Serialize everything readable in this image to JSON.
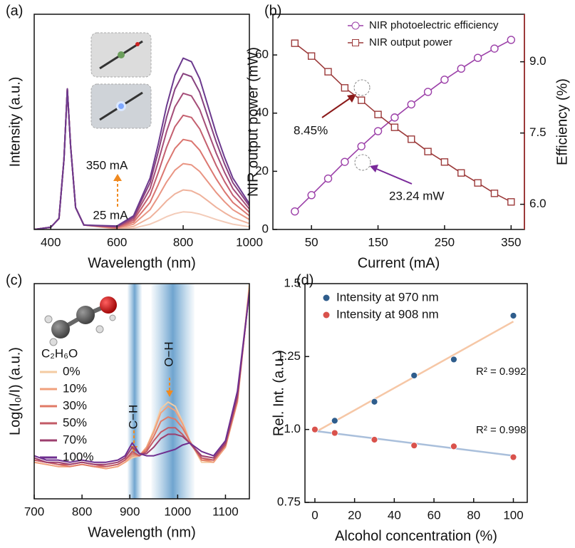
{
  "chart_data": [
    {
      "type": "line",
      "panel_label": "(a)",
      "xlabel": "Wavelength (nm)",
      "ylabel": "Intensity (a.u.)",
      "x": [
        350,
        400,
        425,
        440,
        450,
        460,
        475,
        500,
        550,
        600,
        650,
        700,
        725,
        750,
        775,
        800,
        825,
        850,
        875,
        900,
        925,
        950,
        1000
      ],
      "xlim": [
        350,
        1000
      ],
      "xticks": [
        400,
        600,
        800,
        1000
      ],
      "ylim": [
        0,
        0.98
      ],
      "series": [
        {
          "color": "#f3cbb8",
          "values": [
            0,
            0.01,
            0.05,
            0.32,
            0.64,
            0.38,
            0.1,
            0.02,
            0.011,
            0.002,
            0.006,
            0.024,
            0.04,
            0.058,
            0.072,
            0.08,
            0.078,
            0.07,
            0.058,
            0.045,
            0.034,
            0.024,
            0.012
          ]
        },
        {
          "color": "#efb29c",
          "values": [
            0,
            0.01,
            0.05,
            0.32,
            0.64,
            0.38,
            0.1,
            0.02,
            0.012,
            0.004,
            0.014,
            0.054,
            0.09,
            0.13,
            0.162,
            0.18,
            0.176,
            0.158,
            0.13,
            0.101,
            0.076,
            0.054,
            0.027
          ]
        },
        {
          "color": "#e99583",
          "values": [
            0,
            0.01,
            0.05,
            0.32,
            0.64,
            0.38,
            0.1,
            0.02,
            0.013,
            0.006,
            0.024,
            0.09,
            0.15,
            0.216,
            0.27,
            0.3,
            0.294,
            0.264,
            0.216,
            0.168,
            0.126,
            0.09,
            0.045
          ]
        },
        {
          "color": "#db7670",
          "values": [
            0,
            0.01,
            0.05,
            0.32,
            0.64,
            0.38,
            0.1,
            0.02,
            0.014,
            0.008,
            0.033,
            0.123,
            0.205,
            0.295,
            0.369,
            0.41,
            0.402,
            0.361,
            0.295,
            0.23,
            0.172,
            0.123,
            0.062
          ]
        },
        {
          "color": "#c45f6f",
          "values": [
            0,
            0.01,
            0.05,
            0.32,
            0.64,
            0.38,
            0.1,
            0.02,
            0.015,
            0.01,
            0.042,
            0.156,
            0.26,
            0.374,
            0.468,
            0.52,
            0.51,
            0.458,
            0.374,
            0.291,
            0.218,
            0.156,
            0.078
          ]
        },
        {
          "color": "#a54d78",
          "values": [
            0,
            0.01,
            0.05,
            0.32,
            0.64,
            0.38,
            0.1,
            0.02,
            0.016,
            0.012,
            0.05,
            0.186,
            0.31,
            0.446,
            0.558,
            0.62,
            0.608,
            0.546,
            0.446,
            0.347,
            0.26,
            0.186,
            0.093
          ]
        },
        {
          "color": "#87427f",
          "values": [
            0,
            0.01,
            0.05,
            0.32,
            0.64,
            0.38,
            0.1,
            0.02,
            0.017,
            0.014,
            0.057,
            0.213,
            0.355,
            0.511,
            0.639,
            0.71,
            0.696,
            0.625,
            0.511,
            0.398,
            0.298,
            0.213,
            0.107
          ]
        },
        {
          "color": "#6c3a8e",
          "values": [
            0,
            0.01,
            0.05,
            0.32,
            0.64,
            0.38,
            0.1,
            0.02,
            0.018,
            0.016,
            0.062,
            0.234,
            0.39,
            0.562,
            0.702,
            0.78,
            0.764,
            0.686,
            0.562,
            0.437,
            0.328,
            0.234,
            0.117
          ]
        }
      ],
      "annotations": [
        {
          "text": "350 mA"
        },
        {
          "text": "25 mA"
        }
      ]
    },
    {
      "type": "line",
      "markers": true,
      "panel_label": "(b)",
      "xlabel": "Current (mA)",
      "ylabel": "NIR output power (mW)",
      "y2label": "Efficiency (%)",
      "x": [
        25,
        50,
        75,
        100,
        125,
        150,
        175,
        200,
        225,
        250,
        275,
        300,
        325,
        350
      ],
      "xlim": [
        -8,
        370
      ],
      "xticks": [
        50,
        150,
        250,
        350
      ],
      "ylim": [
        0,
        74
      ],
      "yticks": [
        0,
        20,
        40,
        60
      ],
      "y2lim": [
        5.47,
        10.0
      ],
      "y2ticks": [
        {
          "value": 6,
          "label": "6.0"
        },
        7.5,
        {
          "value": 9,
          "label": "9.0"
        }
      ],
      "series": [
        {
          "name": "NIR photoelectric efficiency",
          "color": "#9b3fa8",
          "marker": "circle",
          "values": [
            6.2,
            11.8,
            17.5,
            23.24,
            28.6,
            33.8,
            38.5,
            43.0,
            47.3,
            51.5,
            55.3,
            59.0,
            62.2,
            65.2
          ]
        },
        {
          "name": "NIR output power",
          "color": "#9c3a3a",
          "marker": "square",
          "axis": "y2",
          "values": [
            9.39,
            9.12,
            8.79,
            8.45,
            8.19,
            7.89,
            7.62,
            7.37,
            7.11,
            6.89,
            6.66,
            6.45,
            6.23,
            6.05
          ]
        }
      ],
      "annotations": [
        {
          "text": "8.45%"
        },
        {
          "text": "23.24 mW"
        }
      ]
    },
    {
      "type": "line",
      "panel_label": "(c)",
      "xlabel": "Wavelength (nm)",
      "ylabel": "Log(I₀/I) (a.u.)",
      "molecule": "C₂H₆O",
      "x": [
        700,
        725,
        750,
        775,
        800,
        825,
        850,
        875,
        890,
        905,
        920,
        935,
        950,
        965,
        980,
        995,
        1010,
        1025,
        1050,
        1075,
        1100,
        1125,
        1150
      ],
      "xlim": [
        700,
        1150
      ],
      "xticks": [
        700,
        800,
        900,
        1000,
        1100
      ],
      "ylim": [
        0,
        1
      ],
      "bands": [
        {
          "from": 895,
          "to": 925
        },
        {
          "from": 945,
          "to": 1035
        }
      ],
      "series": [
        {
          "name": "0%",
          "color": "#f4cba2",
          "values": [
            0.17,
            0.16,
            0.15,
            0.15,
            0.16,
            0.15,
            0.14,
            0.15,
            0.17,
            0.19,
            0.2,
            0.24,
            0.32,
            0.42,
            0.45,
            0.43,
            0.36,
            0.27,
            0.17,
            0.17,
            0.24,
            0.45,
            1.0
          ]
        },
        {
          "name": "10%",
          "color": "#f0a07c",
          "values": [
            0.17,
            0.16,
            0.15,
            0.15,
            0.16,
            0.15,
            0.14,
            0.15,
            0.17,
            0.2,
            0.2,
            0.24,
            0.31,
            0.4,
            0.43,
            0.41,
            0.35,
            0.27,
            0.18,
            0.17,
            0.24,
            0.45,
            0.98
          ]
        },
        {
          "name": "30%",
          "color": "#e07a66",
          "values": [
            0.18,
            0.17,
            0.16,
            0.15,
            0.16,
            0.15,
            0.15,
            0.16,
            0.18,
            0.21,
            0.2,
            0.23,
            0.29,
            0.36,
            0.38,
            0.37,
            0.33,
            0.27,
            0.18,
            0.18,
            0.25,
            0.46,
            0.97
          ]
        },
        {
          "name": "50%",
          "color": "#c25a66",
          "values": [
            0.18,
            0.17,
            0.16,
            0.16,
            0.17,
            0.16,
            0.15,
            0.16,
            0.18,
            0.22,
            0.2,
            0.22,
            0.27,
            0.31,
            0.33,
            0.33,
            0.3,
            0.26,
            0.19,
            0.18,
            0.25,
            0.47,
            0.97
          ]
        },
        {
          "name": "70%",
          "color": "#9c3f6e",
          "values": [
            0.19,
            0.17,
            0.17,
            0.16,
            0.17,
            0.16,
            0.16,
            0.17,
            0.19,
            0.24,
            0.21,
            0.21,
            0.24,
            0.28,
            0.3,
            0.3,
            0.29,
            0.26,
            0.2,
            0.19,
            0.26,
            0.48,
            0.96
          ]
        },
        {
          "name": "100%",
          "color": "#6e2f8f",
          "values": [
            0.2,
            0.18,
            0.18,
            0.17,
            0.18,
            0.17,
            0.17,
            0.18,
            0.2,
            0.26,
            0.21,
            0.2,
            0.2,
            0.21,
            0.22,
            0.23,
            0.25,
            0.26,
            0.22,
            0.2,
            0.27,
            0.5,
            0.96
          ]
        }
      ],
      "annotations": [
        {
          "text": "C−H"
        },
        {
          "text": "O−H"
        }
      ]
    },
    {
      "type": "scatter",
      "panel_label": "(d)",
      "xlabel": "Alcohol concentration (%)",
      "ylabel": "Rel. Int. (a.u.)",
      "x": [
        0,
        10,
        30,
        50,
        70,
        100
      ],
      "xlim": [
        -5,
        107
      ],
      "xticks": [
        0,
        20,
        40,
        60,
        80,
        100
      ],
      "ylim": [
        0.75,
        1.5
      ],
      "yticks": [
        0.75,
        {
          "value": 1,
          "label": "1.0"
        },
        1.25,
        1.5
      ],
      "series": [
        {
          "name": "Intensity at 970 nm",
          "color": "#2f5d8c",
          "fit_color": "#f6c7a6",
          "values": [
            1.0,
            1.03,
            1.095,
            1.185,
            1.24,
            1.39
          ],
          "fit": {
            "x": [
              0,
              100
            ],
            "y": [
              0.99,
              1.37
            ]
          }
        },
        {
          "name": "Intensity at 908 nm",
          "color": "#d9524c",
          "fit_color": "#a9bfdb",
          "values": [
            1.0,
            0.988,
            0.965,
            0.945,
            0.942,
            0.905
          ],
          "fit": {
            "x": [
              0,
              100
            ],
            "y": [
              0.995,
              0.91
            ]
          }
        }
      ],
      "annotations": [
        {
          "text": "R² = 0.992"
        },
        {
          "text": "R² = 0.998"
        }
      ]
    }
  ]
}
